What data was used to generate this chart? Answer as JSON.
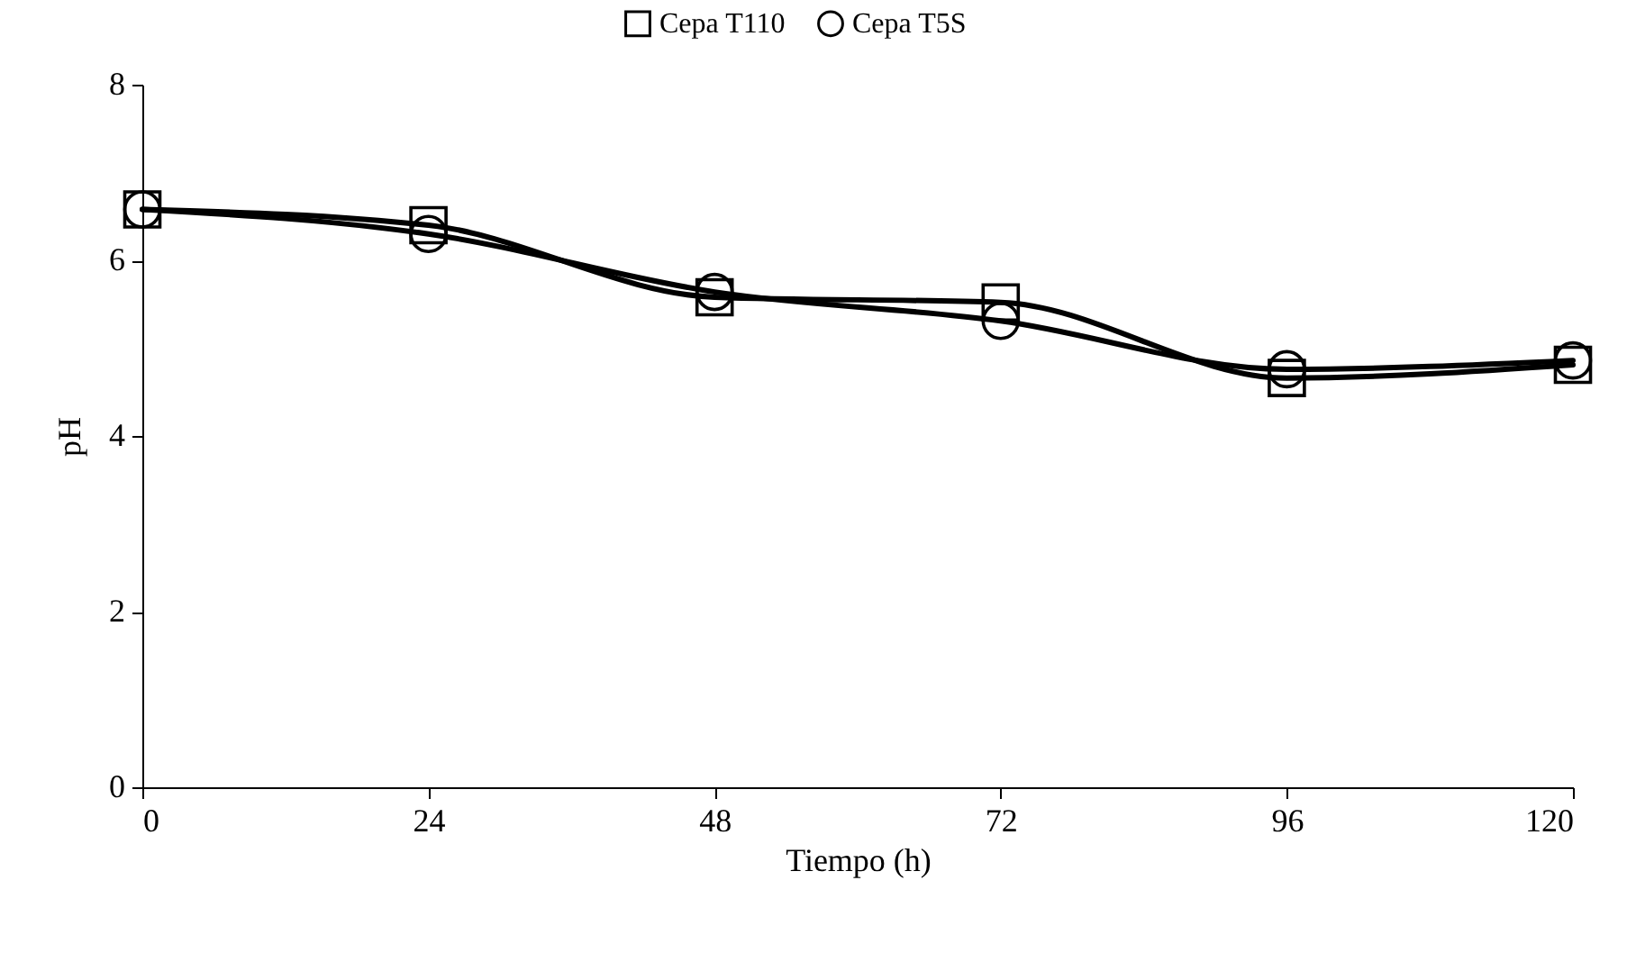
{
  "chart_data": {
    "type": "line",
    "xlabel": "Tiempo (h)",
    "ylabel": "pH",
    "x": [
      0,
      24,
      48,
      72,
      96,
      120
    ],
    "series": [
      {
        "name": "Cepa T110",
        "color": "#000000",
        "marker": "square",
        "values": [
          6.58,
          6.4,
          5.58,
          5.52,
          4.66,
          4.81
        ]
      },
      {
        "name": "Cepa T5S",
        "color": "#000000",
        "marker": "circle",
        "values": [
          6.58,
          6.3,
          5.64,
          5.31,
          4.76,
          4.86
        ]
      }
    ],
    "xlim": [
      0,
      120
    ],
    "xticks": [
      0,
      24,
      48,
      72,
      96,
      120
    ],
    "ylim": [
      0,
      8
    ],
    "yticks": [
      0,
      2,
      4,
      6,
      8
    ],
    "grid": false,
    "legend": "top",
    "line_style": "solid"
  }
}
